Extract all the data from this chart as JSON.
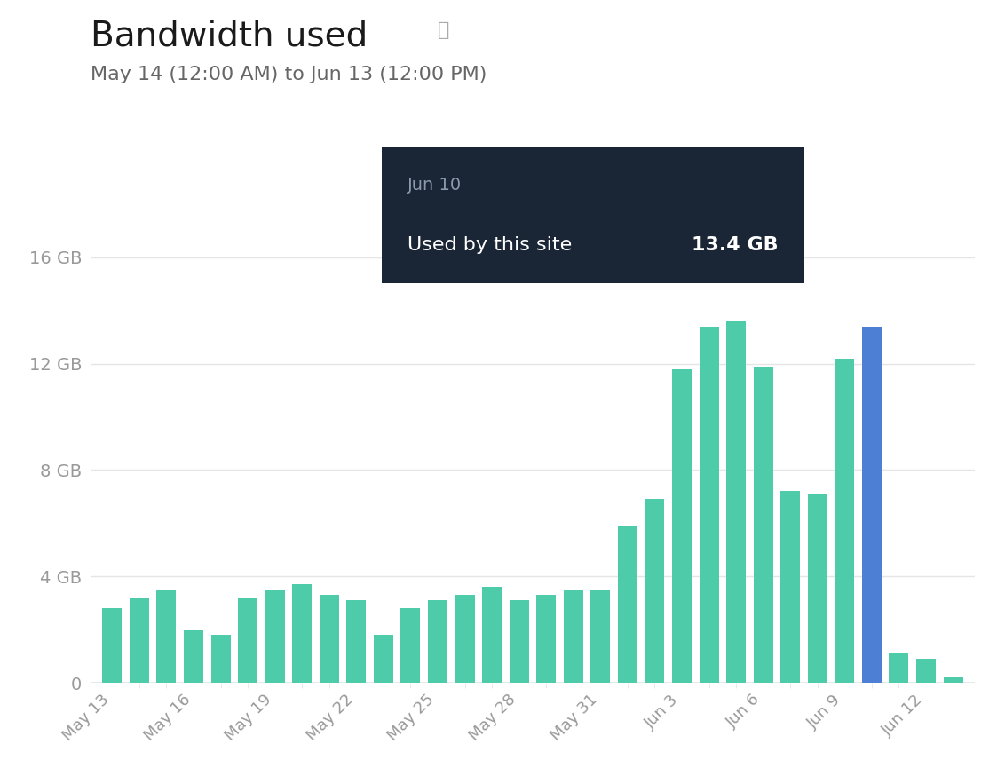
{
  "title": "Bandwidth used",
  "subtitle": "May 14 (12:00 AM) to Jun 13 (12:00 PM)",
  "background_color": "#ffffff",
  "bar_color_default": "#4ECBA8",
  "bar_color_highlight": "#4D7FD4",
  "ytick_labels": [
    "0",
    "4 GB",
    "8 GB",
    "12 GB",
    "16 GB"
  ],
  "ytick_values": [
    0,
    4,
    8,
    12,
    16
  ],
  "xtick_labels": [
    "May 13",
    "May 16",
    "May 19",
    "May 22",
    "May 25",
    "May 28",
    "May 31",
    "Jun 3",
    "Jun 6",
    "Jun 9",
    "Jun 12"
  ],
  "xtick_positions": [
    0,
    3,
    6,
    9,
    12,
    15,
    18,
    21,
    24,
    27,
    30
  ],
  "tooltip": {
    "date": "Jun 10",
    "label": "Used by this site",
    "value": "13.4 GB",
    "bg_color": "#1a2535",
    "text_color_label": "#8a9bb0",
    "text_color_value": "#ffffff"
  },
  "values": [
    2.8,
    3.2,
    3.5,
    2.0,
    1.8,
    3.2,
    3.5,
    3.7,
    3.3,
    3.1,
    1.8,
    2.8,
    3.1,
    3.3,
    3.6,
    3.1,
    3.3,
    3.5,
    3.5,
    5.9,
    6.9,
    11.8,
    13.4,
    13.6,
    11.9,
    7.2,
    7.1,
    12.2,
    13.4,
    1.1,
    0.9,
    0.25
  ],
  "highlight_index": 28,
  "ylim": [
    0,
    17.5
  ],
  "grid_color": "#e5e5e5",
  "tick_color": "#999999",
  "title_fontsize": 28,
  "subtitle_fontsize": 16
}
